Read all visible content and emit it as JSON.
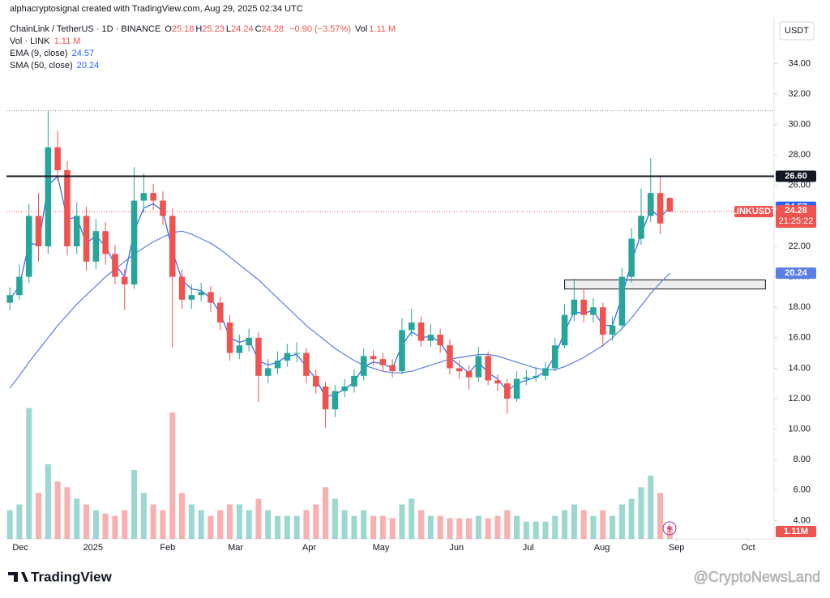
{
  "attribution": "alphacryptosignal created with TradingView.com, Aug 29, 2025 02:34 UTC",
  "currency": "USDT",
  "logo": "TradingView",
  "watermark": "@CryptoNewsLand",
  "header": {
    "symbol": "ChainLink / TetherUS · 1D · BINANCE",
    "ohlc": [
      {
        "key": "O",
        "value": "25.18"
      },
      {
        "key": "H",
        "value": "25.23"
      },
      {
        "key": "L",
        "value": "24.24"
      },
      {
        "key": "C",
        "value": "24.28"
      }
    ],
    "change": "−0.90 (−3.57%)",
    "vol_key": "Vol",
    "vol_value": "1.11 M"
  },
  "chart_data": {
    "type": "candlestick",
    "up_color": "#26a69a",
    "down_color": "#ef5350",
    "xlim": [
      -0.35,
      79.9
    ],
    "ylim": [
      2.8,
      37.0
    ],
    "grid": false,
    "yticks": [
      {
        "value": 4,
        "label": "4.00"
      },
      {
        "value": 6,
        "label": "6.00"
      },
      {
        "value": 8,
        "label": "8.00"
      },
      {
        "value": 10,
        "label": "10.00"
      },
      {
        "value": 12,
        "label": "12.00"
      },
      {
        "value": 14,
        "label": "14.00"
      },
      {
        "value": 16,
        "label": "16.00"
      },
      {
        "value": 18,
        "label": "18.00"
      },
      {
        "value": 20,
        "label": "20.00"
      },
      {
        "value": 22,
        "label": "22.00"
      },
      {
        "value": 24,
        "label": "24.00"
      },
      {
        "value": 26,
        "label": "26.00"
      },
      {
        "value": 28,
        "label": "28.00"
      },
      {
        "value": 30,
        "label": "30.00"
      },
      {
        "value": 32,
        "label": "32.00"
      },
      {
        "value": 34,
        "label": "34.00"
      }
    ],
    "xticks": [
      {
        "value": 1.1,
        "label": "Dec"
      },
      {
        "value": 8.7,
        "label": "2025"
      },
      {
        "value": 16.5,
        "label": "Feb"
      },
      {
        "value": 23.6,
        "label": "Mar"
      },
      {
        "value": 31.3,
        "label": "Apr"
      },
      {
        "value": 38.8,
        "label": "May"
      },
      {
        "value": 46.7,
        "label": "Jun"
      },
      {
        "value": 54.2,
        "label": "Jul"
      },
      {
        "value": 61.9,
        "label": "Aug"
      },
      {
        "value": 69.7,
        "label": "Sep"
      },
      {
        "value": 77.2,
        "label": "Oct"
      }
    ],
    "candles": [
      [
        18.3,
        19.3,
        17.8,
        18.8
      ],
      [
        18.8,
        20.8,
        18.5,
        20
      ],
      [
        20,
        24.8,
        19.6,
        24
      ],
      [
        24,
        25.5,
        21,
        22
      ],
      [
        22,
        30.9,
        21.5,
        28.5
      ],
      [
        28.5,
        29.6,
        26.3,
        27
      ],
      [
        27,
        27.6,
        21.4,
        22
      ],
      [
        22,
        24.9,
        21.5,
        24
      ],
      [
        24,
        24.6,
        20.4,
        21
      ],
      [
        21,
        23.8,
        20.5,
        23
      ],
      [
        23,
        23.6,
        20.8,
        21.5
      ],
      [
        21.5,
        22.1,
        19.5,
        20
      ],
      [
        20,
        20.5,
        17.8,
        19.5
      ],
      [
        19.5,
        27.2,
        19.2,
        25
      ],
      [
        25,
        26.8,
        24.2,
        25.5
      ],
      [
        25.5,
        26.1,
        24.4,
        25
      ],
      [
        25,
        25.6,
        23.4,
        24
      ],
      [
        24,
        24.5,
        15.4,
        20
      ],
      [
        20,
        20.5,
        17.9,
        18.5
      ],
      [
        18.5,
        19.5,
        17.9,
        18.8
      ],
      [
        18.8,
        19.6,
        18.4,
        19
      ],
      [
        19,
        19.4,
        17.7,
        18.3
      ],
      [
        18.3,
        18.7,
        16.5,
        17
      ],
      [
        17,
        17.5,
        14.5,
        15
      ],
      [
        15,
        16.2,
        14.6,
        15.5
      ],
      [
        15.5,
        16.6,
        15.1,
        16
      ],
      [
        16,
        16.4,
        11.8,
        13.5
      ],
      [
        13.5,
        14.6,
        13,
        14
      ],
      [
        14,
        15.1,
        13.6,
        14.5
      ],
      [
        14.5,
        15.6,
        14.1,
        15
      ],
      [
        15,
        15.7,
        14.4,
        15
      ],
      [
        15,
        15.3,
        13,
        13.5
      ],
      [
        13.5,
        13.9,
        12.3,
        12.8
      ],
      [
        12.8,
        13.1,
        10.1,
        11.3
      ],
      [
        11.3,
        12.9,
        10.8,
        12.5
      ],
      [
        12.5,
        13.3,
        12.1,
        12.8
      ],
      [
        12.8,
        13.9,
        12.4,
        13.5
      ],
      [
        13.5,
        15.3,
        13.2,
        14.8
      ],
      [
        14.8,
        15.2,
        14.2,
        14.6
      ],
      [
        14.6,
        15,
        13.8,
        14.2
      ],
      [
        14.2,
        14.6,
        13.4,
        13.8
      ],
      [
        13.8,
        17.3,
        13.6,
        16.5
      ],
      [
        16.5,
        17.9,
        16.1,
        17
      ],
      [
        17,
        17.4,
        15.4,
        15.8
      ],
      [
        15.8,
        16.9,
        15.4,
        16.2
      ],
      [
        16.2,
        16.6,
        15,
        15.5
      ],
      [
        15.5,
        15.9,
        13.6,
        14
      ],
      [
        14,
        14.5,
        13.3,
        13.8
      ],
      [
        13.8,
        14.2,
        12.6,
        13.4
      ],
      [
        13.4,
        15.4,
        13.1,
        14.8
      ],
      [
        14.8,
        15.1,
        12.9,
        13.2
      ],
      [
        13.2,
        13.6,
        12.5,
        13
      ],
      [
        13,
        13.3,
        11,
        12
      ],
      [
        12,
        13.8,
        11.8,
        13.3
      ],
      [
        13.3,
        13.9,
        12.9,
        13.4
      ],
      [
        13.4,
        14.1,
        13.1,
        13.5
      ],
      [
        13.5,
        14.4,
        13.2,
        14
      ],
      [
        14,
        16,
        13.8,
        15.5
      ],
      [
        15.5,
        18.2,
        15.3,
        17.5
      ],
      [
        17.5,
        19.9,
        17.1,
        18.5
      ],
      [
        18.5,
        19.2,
        17,
        17.5
      ],
      [
        17.5,
        18.6,
        17,
        18
      ],
      [
        18,
        18.3,
        15.4,
        16.2
      ],
      [
        16.2,
        17.4,
        15.8,
        16.8
      ],
      [
        16.8,
        20.6,
        16.5,
        20
      ],
      [
        20,
        23.2,
        19.6,
        22.5
      ],
      [
        22.5,
        25.8,
        22.1,
        24
      ],
      [
        24,
        27.8,
        23.6,
        25.5
      ],
      [
        25.5,
        26.6,
        22.8,
        23.5
      ],
      [
        25.18,
        25.23,
        24.24,
        24.28
      ]
    ],
    "volume": {
      "name": "Vol · LINK",
      "value_label": "1.11 M",
      "badge_label": "1.11M",
      "vlim": [
        0,
        12
      ],
      "values": [
        2.5,
        3,
        11.4,
        4,
        6.5,
        5,
        4.5,
        3.5,
        3,
        2.5,
        2.2,
        2,
        2.5,
        6,
        4,
        3,
        2.5,
        11,
        4,
        3,
        2.5,
        2,
        2.5,
        3,
        3,
        2.5,
        3.5,
        2.5,
        2,
        2,
        2,
        2.5,
        3,
        4.5,
        3.5,
        2.5,
        2,
        2.5,
        2,
        2,
        1.8,
        3,
        3.5,
        2.5,
        2,
        2,
        1.8,
        1.8,
        1.8,
        2,
        1.8,
        2,
        2.5,
        2,
        1.5,
        1.5,
        1.5,
        2,
        2.5,
        3,
        2.5,
        2,
        2.5,
        2,
        3,
        3.5,
        4.5,
        5.5,
        4,
        1.11
      ]
    },
    "series": [
      {
        "name": "EMA (9, close)",
        "color": "#2962ff",
        "value_label": "24.57",
        "values": [
          18.5,
          19.4,
          22.2,
          22.1,
          26,
          26.6,
          23.8,
          23.9,
          22.2,
          22.7,
          22,
          20.8,
          20,
          23,
          24.5,
          24.8,
          24.3,
          21.7,
          19.8,
          19.2,
          19.1,
          18.6,
          17.6,
          16,
          15.7,
          15.9,
          14.5,
          14.2,
          14.4,
          14.8,
          14.9,
          14.1,
          13.3,
          12.1,
          12.3,
          12.6,
          13.1,
          14.1,
          14.4,
          14.3,
          14,
          15.5,
          16.4,
          16,
          16.1,
          15.7,
          14.7,
          14.2,
          13.7,
          14.4,
          13.7,
          13.3,
          12.5,
          13,
          13.2,
          13.4,
          13.8,
          14.8,
          16.4,
          17.7,
          17.6,
          17.8,
          16.8,
          16.8,
          18.7,
          21,
          22.8,
          24.4,
          23.9,
          24.57
        ]
      },
      {
        "name": "SMA (50, close)",
        "color": "#5b7ee5",
        "value_label": "20.24",
        "values": [
          12.7,
          13.5,
          14.4,
          15.2,
          16,
          16.8,
          17.5,
          18.2,
          18.8,
          19.4,
          20,
          20.5,
          21,
          21.5,
          21.9,
          22.3,
          22.6,
          22.9,
          23,
          22.8,
          22.5,
          22.2,
          21.8,
          21.3,
          20.8,
          20.3,
          19.8,
          19.2,
          18.6,
          18,
          17.4,
          16.8,
          16.3,
          15.8,
          15.3,
          14.9,
          14.5,
          14.2,
          14,
          13.8,
          13.7,
          13.7,
          13.8,
          14,
          14.2,
          14.4,
          14.6,
          14.7,
          14.8,
          14.9,
          14.9,
          14.8,
          14.6,
          14.4,
          14.2,
          14,
          13.9,
          13.9,
          14.1,
          14.4,
          14.7,
          15.1,
          15.5,
          16,
          16.6,
          17.3,
          18.1,
          18.9,
          19.6,
          20.24
        ]
      }
    ],
    "level": {
      "value": 26.6,
      "label": "26.60"
    },
    "dotted_level": 30.9,
    "zone": {
      "x": [
        58,
        79
      ],
      "y": [
        19.2,
        19.8
      ]
    },
    "last_price": {
      "value": 24.28,
      "label": "24.28",
      "symbol": "LINKUSDT",
      "countdown": "21:25:22"
    }
  }
}
